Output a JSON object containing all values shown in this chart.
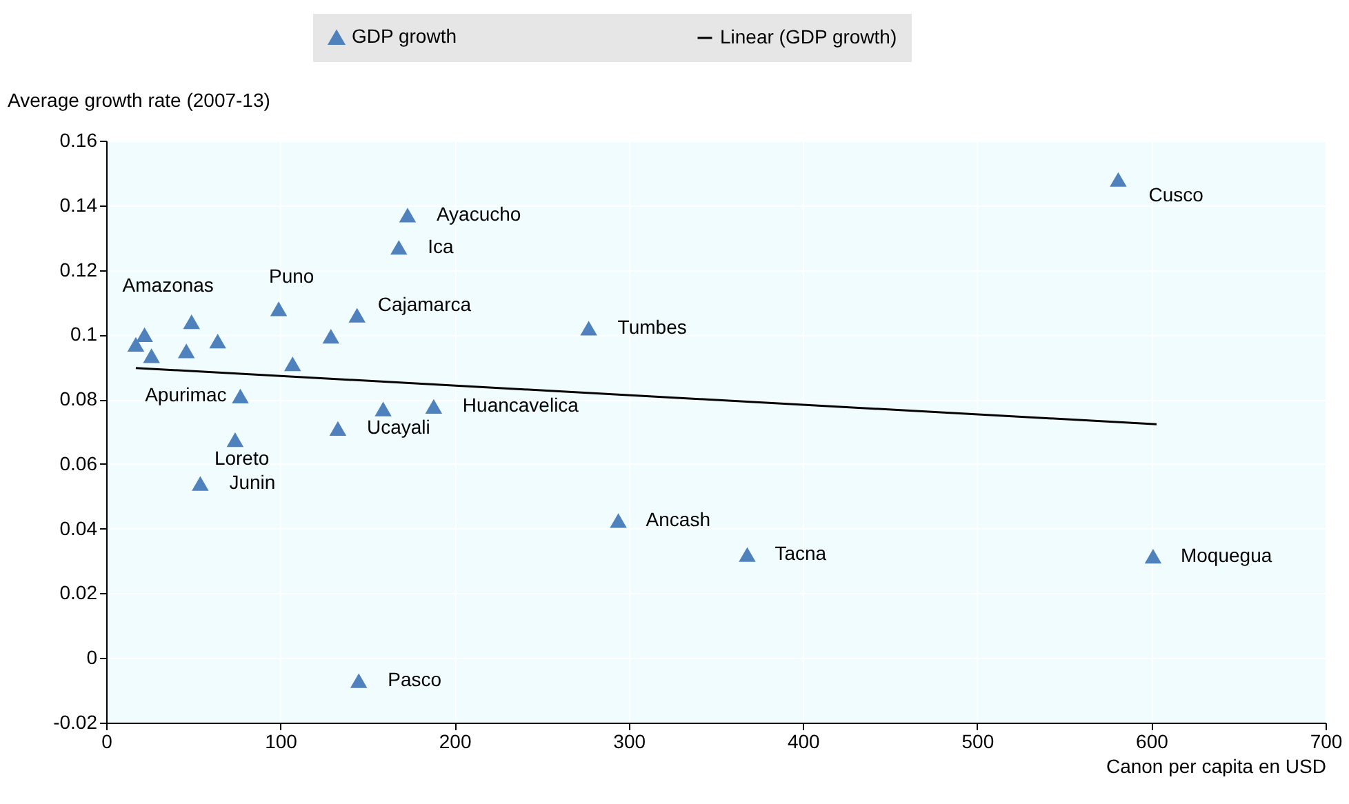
{
  "chart_data": {
    "type": "scatter",
    "xlabel": "Canon per capita en USD",
    "ylabel": "Average growth rate (2007-13)",
    "xlim": [
      0,
      700
    ],
    "xticks": [
      0,
      100,
      200,
      300,
      400,
      500,
      600,
      700
    ],
    "ylim": [
      -0.02,
      0.16
    ],
    "yticks": [
      -0.02,
      0,
      0.02,
      0.04,
      0.06,
      0.08,
      0.1,
      0.12,
      0.14,
      0.16
    ],
    "grid": true,
    "legend": "top",
    "series": [
      {
        "name": "GDP growth",
        "color": "#4f81bd",
        "marker": "triangle",
        "x": [
          581,
          173,
          168,
          17,
          22,
          26,
          49,
          46,
          64,
          99,
          144,
          129,
          107,
          277,
          77,
          74,
          54,
          133,
          159,
          188,
          294,
          368,
          601,
          145
        ],
        "values": [
          0.148,
          0.137,
          0.127,
          0.097,
          0.1,
          0.0935,
          0.104,
          0.095,
          0.098,
          0.108,
          0.106,
          0.0995,
          0.091,
          0.102,
          0.081,
          0.0675,
          0.054,
          0.071,
          0.077,
          0.0778,
          0.0425,
          0.032,
          0.0315,
          -0.007
        ]
      },
      {
        "name": "Linear (GDP growth)",
        "type": "line",
        "color": "#000000",
        "x": [
          17,
          603
        ],
        "values": [
          0.0897,
          0.0723
        ]
      }
    ],
    "annotations": [
      {
        "text": "Cusco",
        "x": 581,
        "y": 0.148
      },
      {
        "text": "Ayacucho",
        "x": 173,
        "y": 0.137
      },
      {
        "text": "Ica",
        "x": 168,
        "y": 0.127
      },
      {
        "text": "Amazonas",
        "x": 22,
        "y": 0.1
      },
      {
        "text": "Puno",
        "x": 99,
        "y": 0.108
      },
      {
        "text": "Cajamarca",
        "x": 144,
        "y": 0.106
      },
      {
        "text": "Tumbes",
        "x": 277,
        "y": 0.102
      },
      {
        "text": "Apurimac",
        "x": 77,
        "y": 0.081
      },
      {
        "text": "Huancavelica",
        "x": 188,
        "y": 0.0778
      },
      {
        "text": "Ucayali",
        "x": 133,
        "y": 0.071
      },
      {
        "text": "Loreto",
        "x": 74,
        "y": 0.0675
      },
      {
        "text": "Junin",
        "x": 54,
        "y": 0.054
      },
      {
        "text": "Ancash",
        "x": 294,
        "y": 0.0425
      },
      {
        "text": "Tacna",
        "x": 368,
        "y": 0.032
      },
      {
        "text": "Moquegua",
        "x": 601,
        "y": 0.0315
      },
      {
        "text": "Pasco",
        "x": 145,
        "y": -0.007
      }
    ]
  }
}
